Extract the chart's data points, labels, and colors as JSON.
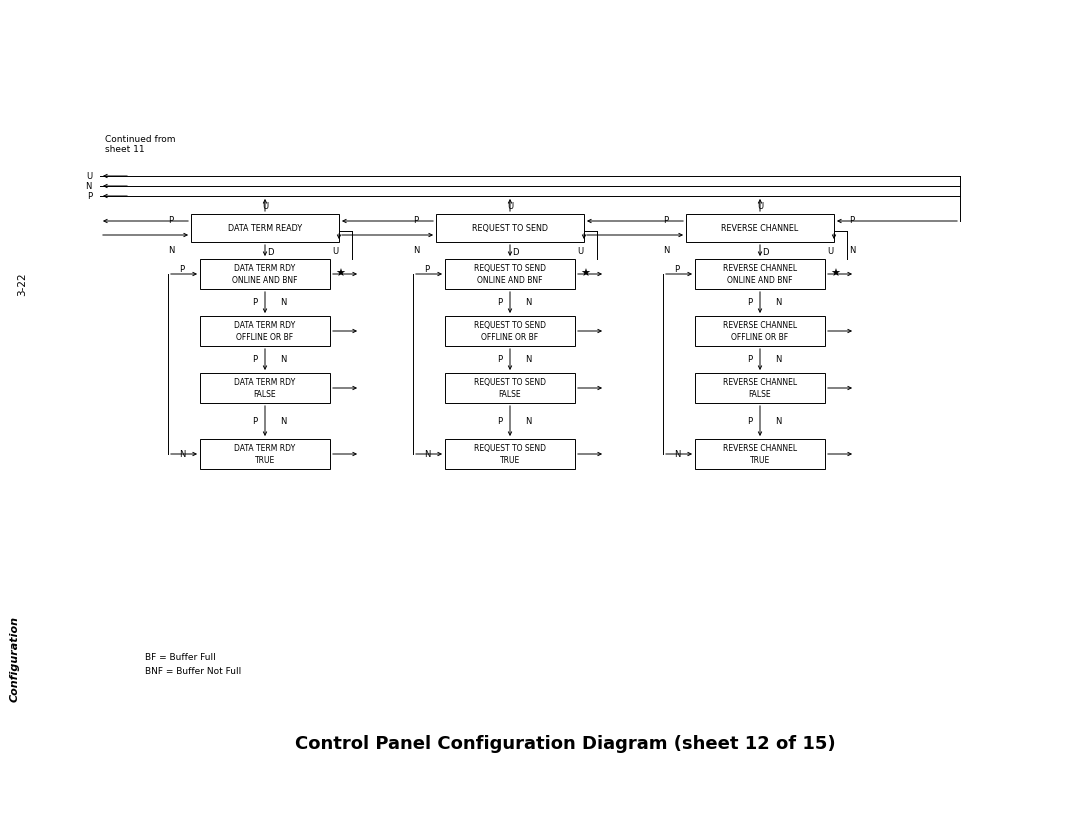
{
  "title": "Control Panel Configuration Diagram (sheet 12 of 15)",
  "page_num": "3-22",
  "continued_from": "Continued from\nsheet 11",
  "sidebar_text": "Configuration",
  "footnotes": [
    "BF = Buffer Full",
    "BNF = Buffer Not Full"
  ],
  "bg_color": "#ffffff",
  "columns": [
    {
      "top_box_label": "DATA TERM READY",
      "boxes": [
        "DATA TERM RDY\nONLINE AND BNF",
        "DATA TERM RDY\nOFFLINE OR BF",
        "DATA TERM RDY\nFALSE",
        "DATA TERM RDY\nTRUE"
      ]
    },
    {
      "top_box_label": "REQUEST TO SEND",
      "boxes": [
        "REQUEST TO SEND\nONLINE AND BNF",
        "REQUEST TO SEND\nOFFLINE OR BF",
        "REQUEST TO SEND\nFALSE",
        "REQUEST TO SEND\nTRUE"
      ]
    },
    {
      "top_box_label": "REVERSE CHANNEL",
      "boxes": [
        "REVERSE CHANNEL\nONLINE AND BNF",
        "REVERSE CHANNEL\nOFFLINE OR BF",
        "REVERSE CHANNEL\nFALSE",
        "REVERSE CHANNEL\nTRUE"
      ]
    }
  ]
}
